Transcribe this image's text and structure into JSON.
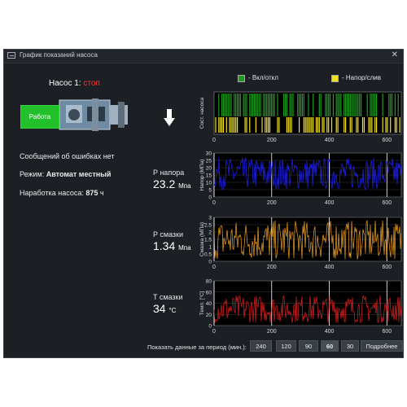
{
  "window": {
    "title": "График показаний насоса",
    "close": "✕"
  },
  "pump": {
    "title_prefix": "Насос 1:",
    "state": "стоп",
    "button": "Работа",
    "state_color": "#ff3030",
    "running_color": "#22c02b"
  },
  "info": {
    "errors": "Сообщений об ошибках нет",
    "mode_label": "Режим:",
    "mode_value": "Автомат местный",
    "hours_label": "Наработка насоса:",
    "hours_value": "875",
    "hours_unit": "ч"
  },
  "meters": {
    "p_head": {
      "label": "P напора",
      "value": "23.2",
      "unit": "Мпа"
    },
    "p_lub": {
      "label": "P смазки",
      "value": "1.34",
      "unit": "Мпа"
    },
    "t_lub": {
      "label": "T смазки",
      "value": "34",
      "unit": "°C"
    }
  },
  "legend": {
    "on_off": "- Вкл/откл",
    "head_drain": "- Напор/слив",
    "on_off_color": "#1f9a1f",
    "head_drain_color": "#f0e020"
  },
  "period": {
    "label": "Показать данные за период (мин.):",
    "options": [
      "240",
      "120",
      "90",
      "60",
      "30"
    ],
    "selected": "60",
    "more": "Подробнее"
  },
  "chart_data": [
    {
      "type": "bar",
      "ylabel": "Сост. насоса",
      "xticks": [
        0,
        200,
        400,
        600
      ],
      "xlim": [
        0,
        650
      ],
      "series": [
        {
          "name": "Вкл/откл",
          "color": "#1f9a1f",
          "values": "binary"
        },
        {
          "name": "Напор/слив",
          "color": "#f0e020",
          "values": "binary"
        }
      ]
    },
    {
      "type": "line",
      "ylabel": "Напор (МПа)",
      "xticks": [
        0,
        200,
        400,
        600
      ],
      "yticks": [
        0,
        5,
        10,
        15,
        20,
        25,
        30
      ],
      "xlim": [
        0,
        650
      ],
      "ylim": [
        0,
        30
      ],
      "color": "#2020ff",
      "range": [
        5,
        27
      ]
    },
    {
      "type": "line",
      "ylabel": "Смазка (МПа)",
      "xticks": [
        0,
        200,
        400,
        600
      ],
      "yticks": [
        0,
        0.5,
        1,
        1.5,
        2,
        2.5,
        3
      ],
      "xlim": [
        0,
        650
      ],
      "ylim": [
        0,
        3
      ],
      "color": "#f0a020",
      "range": [
        0.1,
        2.8
      ]
    },
    {
      "type": "line",
      "ylabel": "Темп. [°C]",
      "xticks": [
        0,
        200,
        400,
        600
      ],
      "yticks": [
        0,
        20,
        40,
        60,
        80
      ],
      "xlim": [
        0,
        650
      ],
      "ylim": [
        0,
        80
      ],
      "color": "#e02020",
      "range": [
        5,
        55
      ]
    }
  ]
}
